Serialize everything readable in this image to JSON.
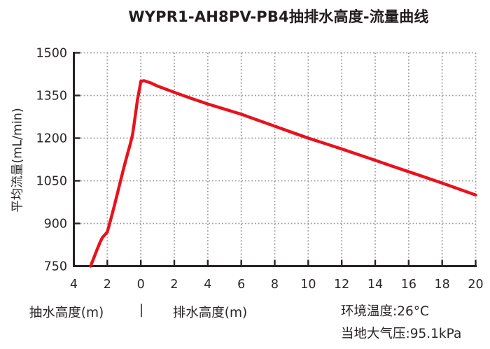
{
  "title": "WYPR1-AH8PV-PB4抽排水高度-流量曲线",
  "chart_data": {
    "type": "line",
    "title": "WYPR1-AH8PV-PB4抽排水高度-流量曲线",
    "ylabel": "平均流量(mL/min)",
    "xlabel": "抽水高度(m) | 排水高度(m)",
    "x_axis_note": "negative x = 抽水高度 (suction side), positive x = 排水高度 (discharge side)",
    "xlim": [
      -4,
      20
    ],
    "ylim": [
      750,
      1500
    ],
    "x_tick_positions": [
      -4,
      -2,
      0,
      2,
      4,
      6,
      8,
      10,
      12,
      14,
      16,
      18,
      20
    ],
    "x_tick_labels": [
      "4",
      "2",
      "0",
      "2",
      "4",
      "6",
      "8",
      "10",
      "12",
      "14",
      "16",
      "18",
      "20"
    ],
    "y_tick_positions": [
      750,
      900,
      1050,
      1200,
      1350,
      1500
    ],
    "y_tick_labels": [
      "750",
      "900",
      "1050",
      "1200",
      "1350",
      "1500"
    ],
    "grid": {
      "style": "dotted",
      "x_lines": [
        -2,
        0,
        2,
        4,
        6,
        8,
        10,
        12,
        14,
        16,
        18,
        20
      ],
      "y_lines": [
        900,
        1050,
        1200,
        1350,
        1500
      ]
    },
    "legend": "none",
    "series": [
      {
        "name": "抽排水高度-流量曲线",
        "color": "#e8121d",
        "points": [
          [
            -3.0,
            750
          ],
          [
            -2.8,
            780
          ],
          [
            -2.6,
            810
          ],
          [
            -2.45,
            832
          ],
          [
            -2.3,
            850
          ],
          [
            -2.15,
            860
          ],
          [
            -2.0,
            870
          ],
          [
            -1.8,
            913
          ],
          [
            -1.6,
            958
          ],
          [
            -1.4,
            1005
          ],
          [
            -1.2,
            1053
          ],
          [
            -1.0,
            1100
          ],
          [
            -0.8,
            1143
          ],
          [
            -0.65,
            1175
          ],
          [
            -0.5,
            1210
          ],
          [
            -0.4,
            1250
          ],
          [
            -0.3,
            1292
          ],
          [
            -0.2,
            1335
          ],
          [
            -0.12,
            1360
          ],
          [
            -0.05,
            1383
          ],
          [
            0,
            1400
          ],
          [
            0.2,
            1402
          ],
          [
            0.6,
            1394
          ],
          [
            1,
            1383
          ],
          [
            2,
            1361
          ],
          [
            3,
            1340
          ],
          [
            4,
            1320
          ],
          [
            5,
            1302
          ],
          [
            6,
            1284
          ],
          [
            7,
            1263
          ],
          [
            8,
            1242
          ],
          [
            9,
            1221
          ],
          [
            10,
            1200
          ],
          [
            11,
            1181
          ],
          [
            12,
            1162
          ],
          [
            13,
            1142
          ],
          [
            14,
            1122
          ],
          [
            15,
            1102
          ],
          [
            16,
            1082
          ],
          [
            17,
            1062
          ],
          [
            18,
            1042
          ],
          [
            19,
            1021
          ],
          [
            20,
            1000
          ]
        ]
      }
    ],
    "annotations": [
      "环境温度:26°C",
      "当地大气压:95.1kPa"
    ]
  },
  "footer": {
    "xlabel_left": "抽水高度(m)",
    "separator": "|",
    "xlabel_right": "排水高度(m)",
    "note_temperature": "环境温度:26°C",
    "note_pressure": "当地大气压:95.1kPa"
  },
  "colors": {
    "line": "#e8121d",
    "axis": "#272223",
    "grid": "#9e9e9e",
    "text": "#2a2526",
    "background": "#ffffff"
  }
}
